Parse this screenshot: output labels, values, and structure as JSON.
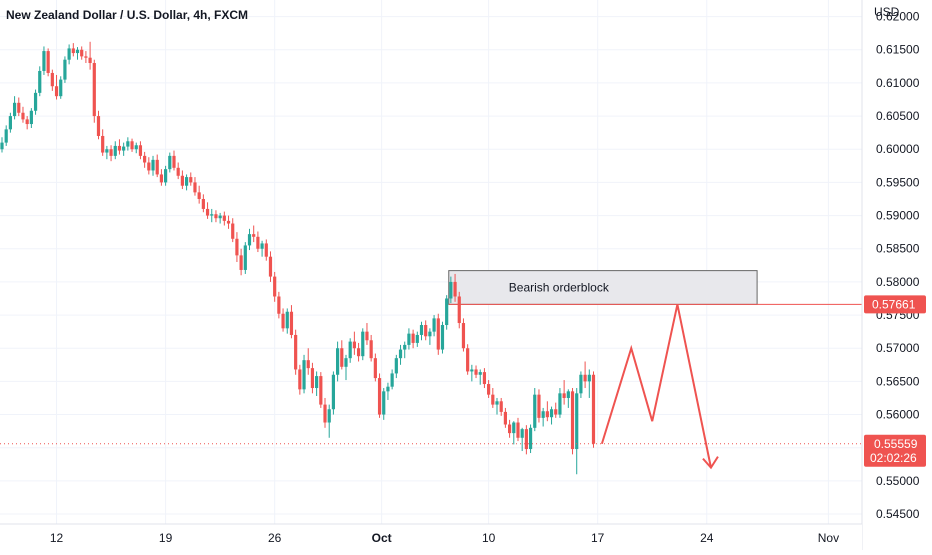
{
  "chart_data": {
    "type": "candlestick",
    "title": "New Zealand Dollar / U.S. Dollar, 4h, FXCM",
    "currency": "USD",
    "ylim": [
      0.5435,
      0.6225
    ],
    "yticks": [
      "0.62000",
      "0.61500",
      "0.61000",
      "0.60500",
      "0.60000",
      "0.59500",
      "0.59000",
      "0.58500",
      "0.58000",
      "0.57500",
      "0.57000",
      "0.56500",
      "0.56000",
      "0.55500",
      "0.55000",
      "0.54500"
    ],
    "xticks": [
      "12",
      "19",
      "26",
      "Oct",
      "10",
      "17",
      "24",
      "Nov"
    ],
    "grid": true,
    "annotations": {
      "orderblock_label": "Bearish orderblock",
      "level_value": "0.57661",
      "last_price": "0.55559",
      "countdown": "02:02:26"
    },
    "colors": {
      "up": "#26a69a",
      "down": "#ef5350",
      "zone_fill": "#e8e8ec",
      "grid": "#f0f3fa"
    },
    "projection": [
      0.5556,
      0.57,
      0.559,
      0.5766,
      0.552
    ],
    "candles": [
      [
        0.6,
        0.6018,
        0.5995,
        0.601
      ],
      [
        0.601,
        0.6036,
        0.6005,
        0.603
      ],
      [
        0.603,
        0.6055,
        0.6025,
        0.605
      ],
      [
        0.605,
        0.608,
        0.6045,
        0.607
      ],
      [
        0.607,
        0.6078,
        0.605,
        0.6055
      ],
      [
        0.6055,
        0.6064,
        0.604,
        0.6045
      ],
      [
        0.6045,
        0.605,
        0.603,
        0.6038
      ],
      [
        0.6038,
        0.6062,
        0.6032,
        0.6058
      ],
      [
        0.6058,
        0.609,
        0.6052,
        0.6085
      ],
      [
        0.6085,
        0.6125,
        0.608,
        0.6118
      ],
      [
        0.6118,
        0.6155,
        0.6112,
        0.6148
      ],
      [
        0.6148,
        0.6152,
        0.611,
        0.6115
      ],
      [
        0.6115,
        0.612,
        0.6088,
        0.6095
      ],
      [
        0.6095,
        0.6112,
        0.6075,
        0.608
      ],
      [
        0.608,
        0.611,
        0.6076,
        0.6105
      ],
      [
        0.6105,
        0.614,
        0.61,
        0.6135
      ],
      [
        0.6135,
        0.6158,
        0.6128,
        0.6152
      ],
      [
        0.6152,
        0.616,
        0.614,
        0.6145
      ],
      [
        0.6145,
        0.6154,
        0.6135,
        0.615
      ],
      [
        0.615,
        0.6155,
        0.6135,
        0.614
      ],
      [
        0.614,
        0.6148,
        0.613,
        0.6138
      ],
      [
        0.6138,
        0.6162,
        0.612,
        0.613
      ],
      [
        0.613,
        0.6135,
        0.604,
        0.605
      ],
      [
        0.605,
        0.6058,
        0.6015,
        0.602
      ],
      [
        0.602,
        0.603,
        0.599,
        0.5995
      ],
      [
        0.5995,
        0.6005,
        0.5985,
        0.6
      ],
      [
        0.6,
        0.6006,
        0.5982,
        0.599
      ],
      [
        0.599,
        0.6012,
        0.5985,
        0.6005
      ],
      [
        0.6005,
        0.6015,
        0.5992,
        0.5998
      ],
      [
        0.5998,
        0.601,
        0.599,
        0.6004
      ],
      [
        0.6004,
        0.6018,
        0.5998,
        0.6012
      ],
      [
        0.6012,
        0.6016,
        0.5996,
        0.6
      ],
      [
        0.6,
        0.601,
        0.5994,
        0.6006
      ],
      [
        0.6006,
        0.6012,
        0.5985,
        0.599
      ],
      [
        0.599,
        0.5996,
        0.5972,
        0.598
      ],
      [
        0.598,
        0.5988,
        0.5962,
        0.5968
      ],
      [
        0.5968,
        0.599,
        0.596,
        0.5984
      ],
      [
        0.5984,
        0.5992,
        0.5958,
        0.5962
      ],
      [
        0.5962,
        0.597,
        0.5945,
        0.595
      ],
      [
        0.595,
        0.5975,
        0.5945,
        0.597
      ],
      [
        0.597,
        0.5995,
        0.5965,
        0.599
      ],
      [
        0.599,
        0.5998,
        0.5968,
        0.5972
      ],
      [
        0.5972,
        0.598,
        0.5955,
        0.596
      ],
      [
        0.596,
        0.5968,
        0.594,
        0.5945
      ],
      [
        0.5945,
        0.5962,
        0.5938,
        0.5958
      ],
      [
        0.5958,
        0.5965,
        0.5945,
        0.595
      ],
      [
        0.595,
        0.5958,
        0.593,
        0.5935
      ],
      [
        0.5935,
        0.5945,
        0.5918,
        0.5925
      ],
      [
        0.5925,
        0.5932,
        0.5905,
        0.591
      ],
      [
        0.591,
        0.592,
        0.5895,
        0.59
      ],
      [
        0.59,
        0.591,
        0.589,
        0.5902
      ],
      [
        0.5902,
        0.5908,
        0.589,
        0.5896
      ],
      [
        0.5896,
        0.5904,
        0.5888,
        0.59
      ],
      [
        0.59,
        0.5906,
        0.5885,
        0.5892
      ],
      [
        0.5892,
        0.59,
        0.588,
        0.5888
      ],
      [
        0.5888,
        0.5896,
        0.586,
        0.5865
      ],
      [
        0.5865,
        0.5875,
        0.583,
        0.584
      ],
      [
        0.584,
        0.585,
        0.581,
        0.5818
      ],
      [
        0.5818,
        0.586,
        0.5812,
        0.5855
      ],
      [
        0.5855,
        0.588,
        0.5848,
        0.5872
      ],
      [
        0.5872,
        0.5885,
        0.586,
        0.5868
      ],
      [
        0.5868,
        0.5876,
        0.5845,
        0.585
      ],
      [
        0.585,
        0.5862,
        0.5838,
        0.5858
      ],
      [
        0.5858,
        0.5864,
        0.5832,
        0.5838
      ],
      [
        0.5838,
        0.5846,
        0.58,
        0.5808
      ],
      [
        0.5808,
        0.5815,
        0.577,
        0.5778
      ],
      [
        0.5778,
        0.5785,
        0.5745,
        0.5752
      ],
      [
        0.5752,
        0.576,
        0.5725,
        0.573
      ],
      [
        0.573,
        0.576,
        0.5722,
        0.5755
      ],
      [
        0.5755,
        0.5765,
        0.5715,
        0.572
      ],
      [
        0.572,
        0.5728,
        0.566,
        0.5668
      ],
      [
        0.5668,
        0.5675,
        0.563,
        0.5638
      ],
      [
        0.5638,
        0.569,
        0.5632,
        0.5682
      ],
      [
        0.5682,
        0.57,
        0.566,
        0.567
      ],
      [
        0.567,
        0.5678,
        0.5632,
        0.564
      ],
      [
        0.564,
        0.5665,
        0.5628,
        0.5658
      ],
      [
        0.5658,
        0.5664,
        0.561,
        0.5615
      ],
      [
        0.5615,
        0.5625,
        0.558,
        0.5588
      ],
      [
        0.5588,
        0.5615,
        0.5565,
        0.5608
      ],
      [
        0.5608,
        0.5665,
        0.56,
        0.566
      ],
      [
        0.566,
        0.571,
        0.565,
        0.57
      ],
      [
        0.57,
        0.5712,
        0.5668,
        0.5672
      ],
      [
        0.5672,
        0.569,
        0.5652,
        0.5685
      ],
      [
        0.5685,
        0.5715,
        0.5678,
        0.571
      ],
      [
        0.571,
        0.5725,
        0.569,
        0.57
      ],
      [
        0.57,
        0.5708,
        0.568,
        0.5688
      ],
      [
        0.5688,
        0.573,
        0.5682,
        0.5725
      ],
      [
        0.5725,
        0.5738,
        0.5705,
        0.5712
      ],
      [
        0.5712,
        0.572,
        0.568,
        0.5685
      ],
      [
        0.5685,
        0.5692,
        0.565,
        0.5655
      ],
      [
        0.5655,
        0.5662,
        0.5595,
        0.56
      ],
      [
        0.56,
        0.564,
        0.5592,
        0.5635
      ],
      [
        0.5635,
        0.5648,
        0.5622,
        0.5642
      ],
      [
        0.5642,
        0.5668,
        0.5638,
        0.5662
      ],
      [
        0.5662,
        0.569,
        0.5655,
        0.5685
      ],
      [
        0.5685,
        0.5705,
        0.5675,
        0.5698
      ],
      [
        0.5698,
        0.571,
        0.5685,
        0.5705
      ],
      [
        0.5705,
        0.573,
        0.5698,
        0.5722
      ],
      [
        0.5722,
        0.5728,
        0.57,
        0.5708
      ],
      [
        0.5708,
        0.5725,
        0.5702,
        0.572
      ],
      [
        0.572,
        0.574,
        0.5712,
        0.5735
      ],
      [
        0.5735,
        0.5742,
        0.5712,
        0.5718
      ],
      [
        0.5718,
        0.573,
        0.5705,
        0.5725
      ],
      [
        0.5725,
        0.575,
        0.5718,
        0.5745
      ],
      [
        0.5745,
        0.5752,
        0.569,
        0.5698
      ],
      [
        0.5698,
        0.574,
        0.5692,
        0.5735
      ],
      [
        0.5735,
        0.578,
        0.5728,
        0.5775
      ],
      [
        0.5775,
        0.5808,
        0.5768,
        0.58
      ],
      [
        0.58,
        0.5812,
        0.577,
        0.5778
      ],
      [
        0.5778,
        0.5785,
        0.573,
        0.5738
      ],
      [
        0.5738,
        0.5745,
        0.5695,
        0.57
      ],
      [
        0.57,
        0.5706,
        0.566,
        0.5665
      ],
      [
        0.5665,
        0.5675,
        0.565,
        0.5668
      ],
      [
        0.5668,
        0.5674,
        0.5655,
        0.566
      ],
      [
        0.566,
        0.5668,
        0.5645,
        0.5664
      ],
      [
        0.5664,
        0.567,
        0.564,
        0.5646
      ],
      [
        0.5646,
        0.5652,
        0.5625,
        0.563
      ],
      [
        0.563,
        0.564,
        0.561,
        0.5615
      ],
      [
        0.5615,
        0.5625,
        0.56,
        0.562
      ],
      [
        0.562,
        0.5625,
        0.5598,
        0.5604
      ],
      [
        0.5604,
        0.561,
        0.558,
        0.5585
      ],
      [
        0.5585,
        0.5592,
        0.5565,
        0.5572
      ],
      [
        0.5572,
        0.559,
        0.5555,
        0.5588
      ],
      [
        0.5588,
        0.5595,
        0.556,
        0.5565
      ],
      [
        0.5565,
        0.558,
        0.5545,
        0.5578
      ],
      [
        0.5578,
        0.5584,
        0.554,
        0.5548
      ],
      [
        0.5548,
        0.5585,
        0.5542,
        0.558
      ],
      [
        0.558,
        0.564,
        0.5575,
        0.563
      ],
      [
        0.563,
        0.5638,
        0.5588,
        0.5595
      ],
      [
        0.5595,
        0.561,
        0.5582,
        0.5605
      ],
      [
        0.5605,
        0.562,
        0.559,
        0.5596
      ],
      [
        0.5596,
        0.5612,
        0.5585,
        0.5608
      ],
      [
        0.5608,
        0.5618,
        0.5595,
        0.56
      ],
      [
        0.56,
        0.564,
        0.5595,
        0.5632
      ],
      [
        0.5632,
        0.5652,
        0.5615,
        0.5625
      ],
      [
        0.5625,
        0.5638,
        0.561,
        0.5635
      ],
      [
        0.5635,
        0.564,
        0.554,
        0.5548
      ],
      [
        0.5548,
        0.564,
        0.551,
        0.5632
      ],
      [
        0.5632,
        0.5665,
        0.5625,
        0.566
      ],
      [
        0.566,
        0.568,
        0.564,
        0.565
      ],
      [
        0.565,
        0.5668,
        0.5625,
        0.566
      ],
      [
        0.566,
        0.5665,
        0.555,
        0.5556
      ]
    ]
  }
}
